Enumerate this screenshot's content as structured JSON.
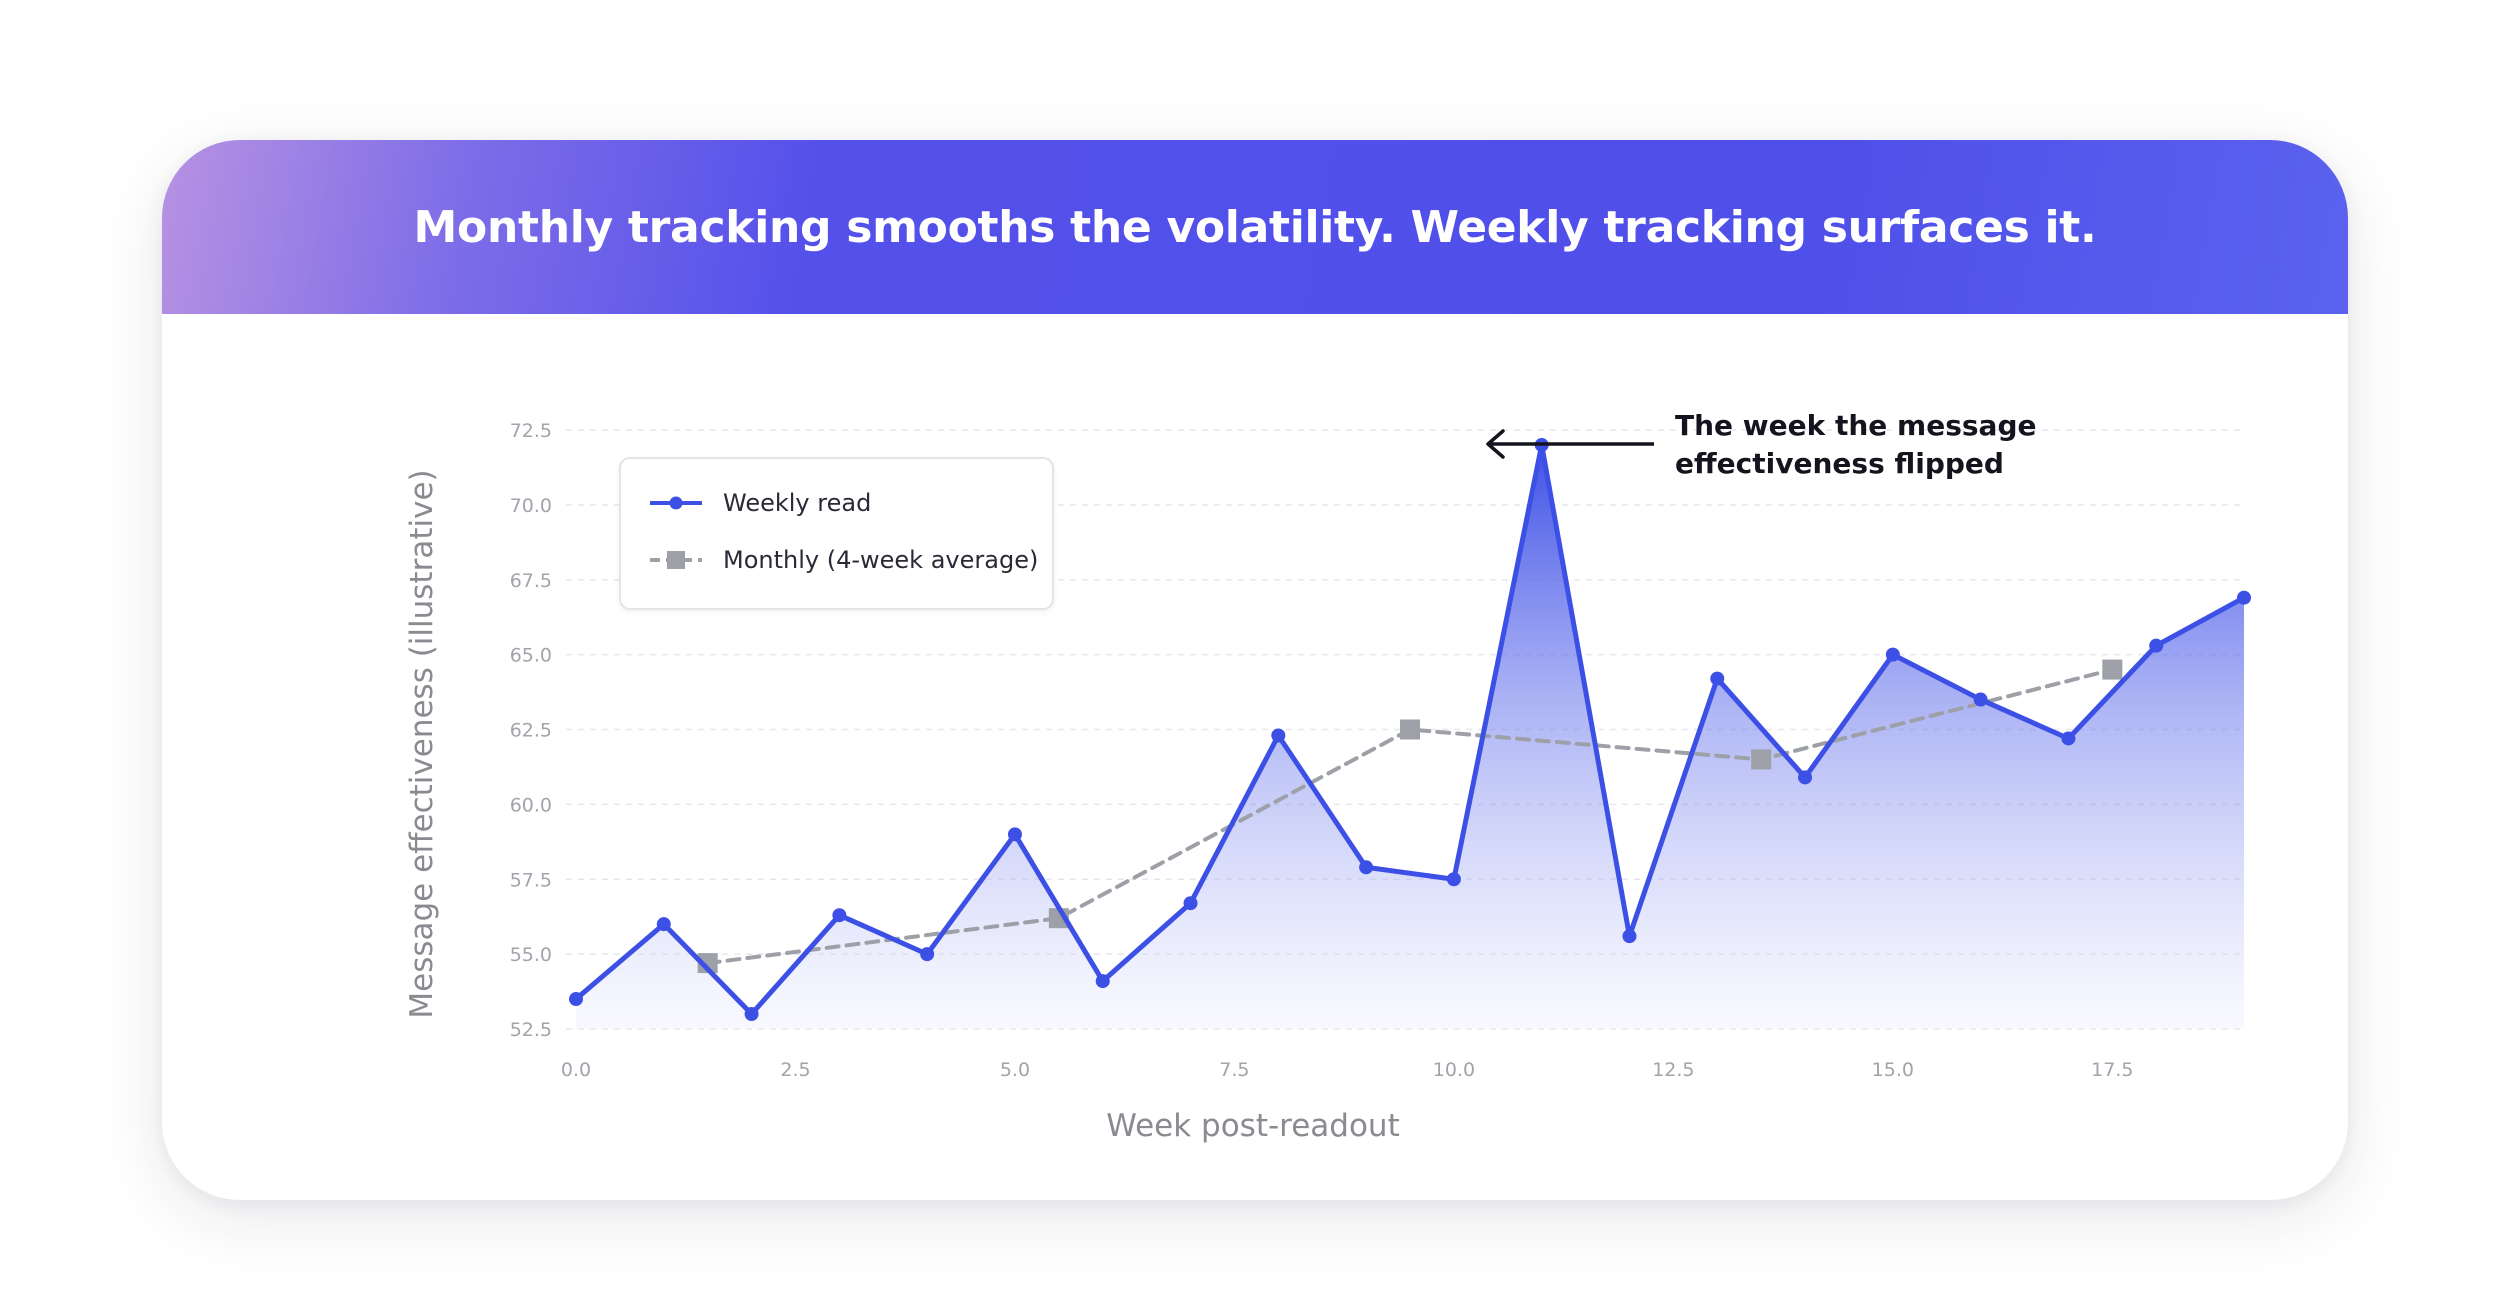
{
  "header": {
    "title": "Monthly tracking smooths the volatility. Weekly tracking surfaces it."
  },
  "colors": {
    "weekly": "#3d50e6",
    "monthly": "#9ea0a8",
    "header_start": "#b792e2",
    "header_end": "#4f4fe9"
  },
  "chart_data": {
    "type": "line",
    "xlabel": "Week post-readout",
    "ylabel": "Message effectiveness (illustrative)",
    "xlim": [
      0,
      19
    ],
    "ylim": [
      52.5,
      72.5
    ],
    "x_ticks": [
      "0.0",
      "2.5",
      "5.0",
      "7.5",
      "10.0",
      "12.5",
      "15.0",
      "17.5"
    ],
    "y_ticks": [
      "52.5",
      "55.0",
      "57.5",
      "60.0",
      "62.5",
      "65.0",
      "67.5",
      "70.0",
      "72.5"
    ],
    "grid": "horizontal dashed",
    "legend_position": "top-left",
    "series": [
      {
        "name": "Weekly read",
        "style": "solid line with circle markers and gradient area fill",
        "x": [
          0,
          1,
          2,
          3,
          4,
          5,
          6,
          7,
          8,
          9,
          10,
          11,
          12,
          13,
          14,
          15,
          16,
          17,
          18,
          19
        ],
        "y": [
          53.5,
          56.0,
          53.0,
          56.3,
          55.0,
          59.0,
          54.1,
          56.7,
          62.3,
          57.9,
          57.5,
          72.0,
          55.6,
          64.2,
          60.9,
          65.0,
          63.5,
          62.2,
          65.3,
          66.9
        ]
      },
      {
        "name": "Monthly (4-week average)",
        "style": "dashed line with square markers",
        "x": [
          1.5,
          5.5,
          9.5,
          13.5,
          17.5
        ],
        "y": [
          54.7,
          56.2,
          62.5,
          61.5,
          64.5
        ]
      }
    ],
    "annotation": {
      "text_line1": "The week the message",
      "text_line2": "effectiveness flipped",
      "points_to_x": 11,
      "points_to_y": 72.0
    }
  }
}
